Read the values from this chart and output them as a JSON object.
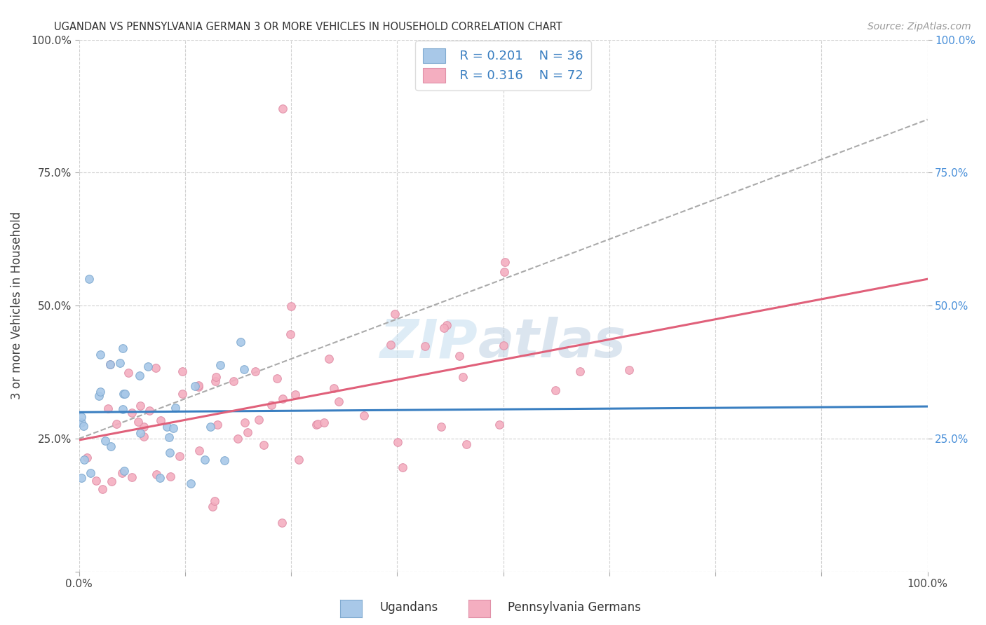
{
  "title": "UGANDAN VS PENNSYLVANIA GERMAN 3 OR MORE VEHICLES IN HOUSEHOLD CORRELATION CHART",
  "source": "Source: ZipAtlas.com",
  "ylabel": "3 or more Vehicles in Household",
  "legend_r1": "R = 0.201",
  "legend_n1": "N = 36",
  "legend_r2": "R = 0.316",
  "legend_n2": "N = 72",
  "color_ugandan": "#a8c8e8",
  "color_pa_german": "#f4aec0",
  "color_line_ugandan": "#3a7fc1",
  "color_line_pa_german": "#e0607a",
  "color_legend_text_blue": "#3a7fc1",
  "color_legend_text_dark": "#222222",
  "color_right_axis": "#4a90d9",
  "watermark_zip": "ZIP",
  "watermark_atlas": "atlas",
  "seed_ugandan": 7,
  "seed_pa": 15
}
